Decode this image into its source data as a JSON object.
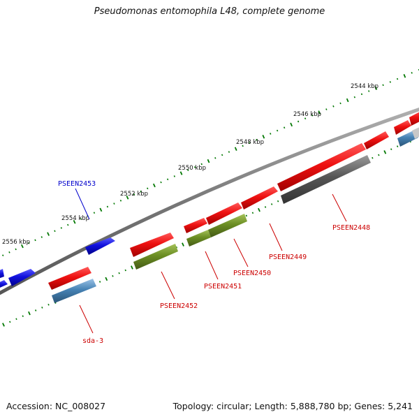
{
  "title": "Pseudomonas entomophila L48, complete genome",
  "footer": {
    "accession": "Accession: NC_008027",
    "summary": "Topology: circular; Length: 5,888,780 bp; Genes: 5,241"
  },
  "ticks": [
    "2544 kbp",
    "2546 kbp",
    "2548 kbp",
    "2550 kbp",
    "2552 kbp",
    "2554 kbp",
    "2556 kbp"
  ],
  "genes": {
    "PSEEN2448": "PSEEN2448",
    "PSEEN2449": "PSEEN2449",
    "PSEEN2450": "PSEEN2450",
    "PSEEN2451": "PSEEN2451",
    "PSEEN2452": "PSEEN2452",
    "PSEEN2453": "PSEEN2453",
    "sda3": "sda-3"
  },
  "colors": {
    "cds_forward": "#ee1111",
    "cds_reverse_forward_gene": "#1111dd",
    "gene_reverse": "#4682b4",
    "rna_or_other": "#6b8e23",
    "pseudo": "#555555",
    "label_forward": "#cc0000",
    "label_reverse": "#0000cc",
    "tick": "#007700",
    "backbone": "#777777"
  }
}
